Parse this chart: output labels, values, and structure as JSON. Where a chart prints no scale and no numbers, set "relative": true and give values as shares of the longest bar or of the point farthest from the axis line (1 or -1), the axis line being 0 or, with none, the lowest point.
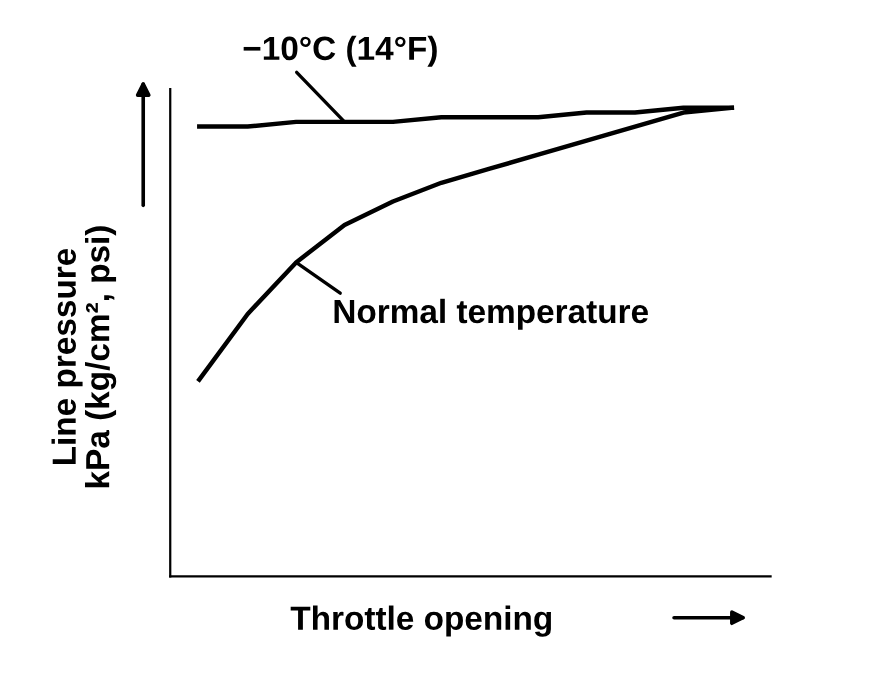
{
  "chart_data": {
    "type": "line",
    "relative": true,
    "xlabel": "Throttle opening",
    "ylabel": "Line pressure\nkPa (kg/cm², psi)",
    "categories": [
      null,
      null,
      null,
      null,
      null,
      null,
      null,
      null,
      null,
      null,
      null,
      null
    ],
    "series": [
      {
        "color": "#000000",
        "values": [
          0.96,
          0.96,
          0.97,
          0.97,
          0.97,
          0.98,
          0.98,
          0.98,
          0.99,
          0.99,
          1.0,
          1.0
        ]
      },
      {
        "color": "#000000",
        "values": [
          0.42,
          0.56,
          0.67,
          0.75,
          0.8,
          0.84,
          0.87,
          0.9,
          0.93,
          0.96,
          0.99,
          1.0
        ]
      }
    ],
    "annotations": [
      "−10°C (14°F)",
      "Normal temperature"
    ],
    "grid": false,
    "legend": false,
    "line_style": "solid",
    "marker": "none"
  }
}
